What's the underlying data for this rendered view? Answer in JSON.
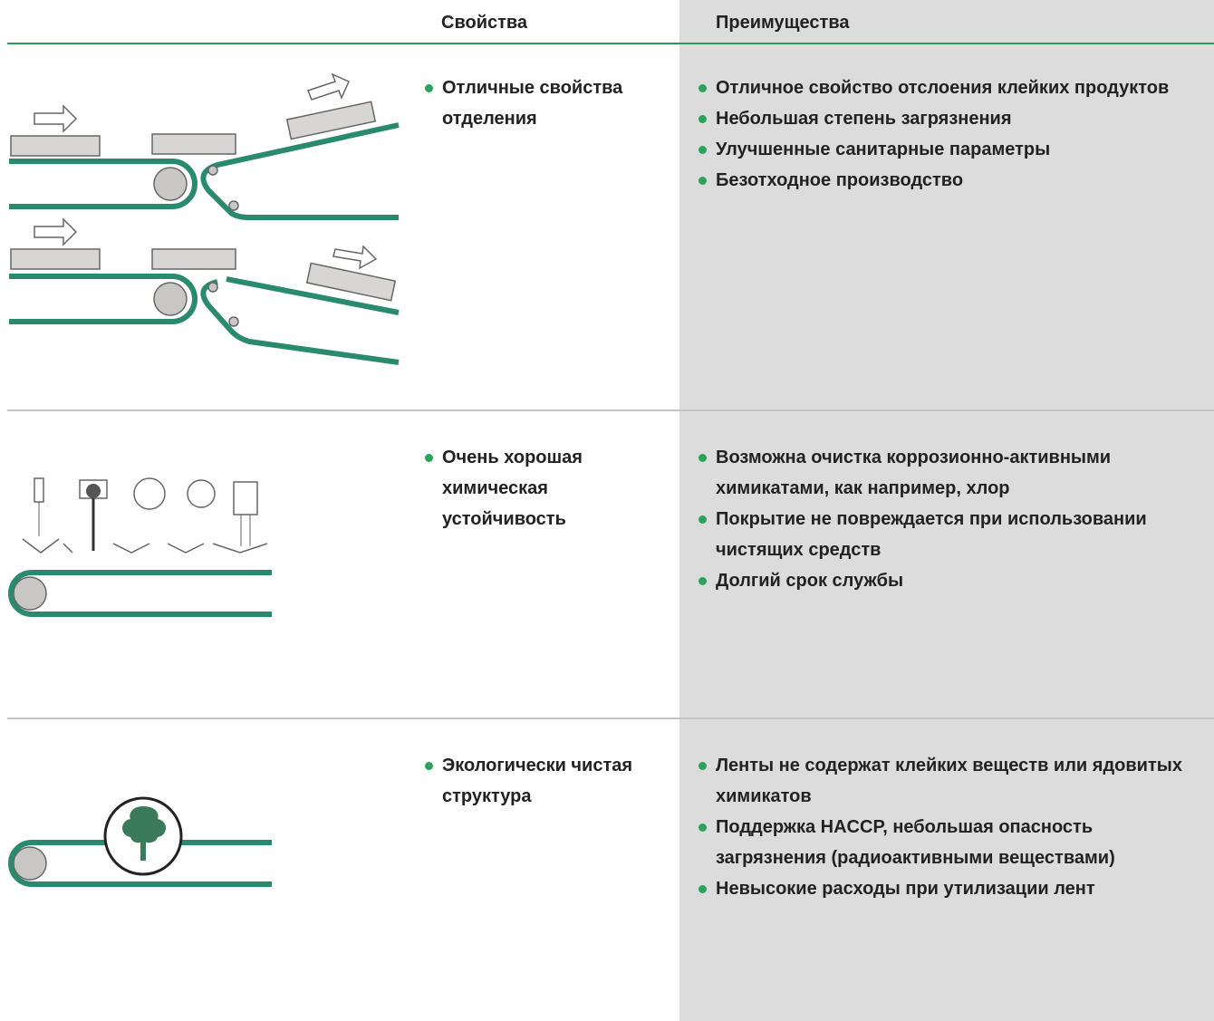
{
  "header": {
    "properties": "Свойства",
    "advantages": "Преимущества"
  },
  "rows": [
    {
      "properties": [
        "Отличные свойства отделения"
      ],
      "advantages": [
        "Отличное свойство отслоения клейких продуктов",
        "Небольшая степень загрязнения",
        "Улучшенные санитарные параметры",
        "Безотходное производство"
      ]
    },
    {
      "properties": [
        "Очень хорошая химическая устойчивость"
      ],
      "advantages": [
        "Возможна очистка коррозионно-активными химикатами, как например, хлор",
        "Покрытие не повреждается при использовании чистящих средств",
        "Долгий срок службы"
      ]
    },
    {
      "properties": [
        "Экологически чистая структура"
      ],
      "advantages": [
        "Ленты не содержат клейких веществ или ядовитых химикатов",
        "Поддержка HACCP, небольшая опасность загрязнения (радиоактивными веществами)",
        "Невысокие расходы при утилизации лент"
      ]
    }
  ]
}
